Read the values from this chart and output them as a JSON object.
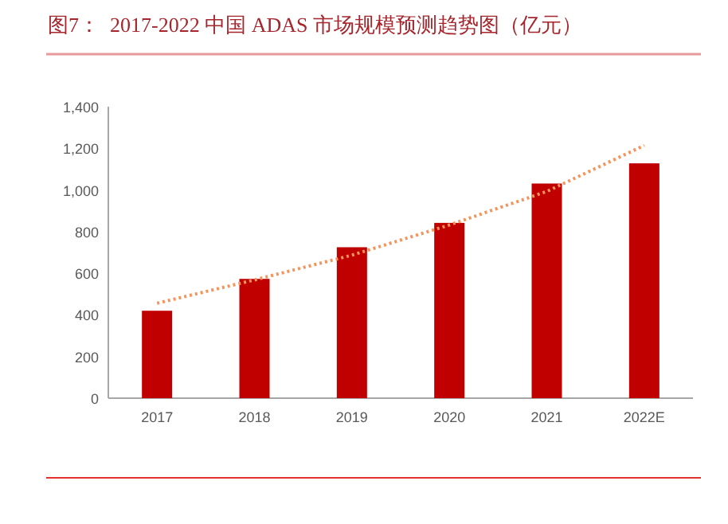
{
  "chart_data": {
    "type": "bar",
    "title": "图7：  2017-2022 中国 ADAS 市场规模预测趋势图（亿元）",
    "categories": [
      "2017",
      "2018",
      "2019",
      "2020",
      "2021",
      "2022E"
    ],
    "series": [
      {
        "color": "#c00000",
        "values": [
          420,
          573,
          725,
          842,
          1031,
          1128
        ]
      },
      {
        "type": "line",
        "color": "#f4935a",
        "line_style": "dotted",
        "values": [
          456,
          568,
          687,
          832,
          993,
          1214
        ]
      }
    ],
    "ylim": [
      0,
      1400
    ],
    "yticks": [
      {
        "value": 0,
        "label": "0"
      },
      {
        "value": 200,
        "label": "200"
      },
      {
        "value": 400,
        "label": "400"
      },
      {
        "value": 600,
        "label": "600"
      },
      {
        "value": 800,
        "label": "800"
      },
      {
        "value": 1000,
        "label": "1,000"
      },
      {
        "value": 1200,
        "label": "1,200"
      },
      {
        "value": 1400,
        "label": "1,400"
      }
    ],
    "grid": false
  }
}
